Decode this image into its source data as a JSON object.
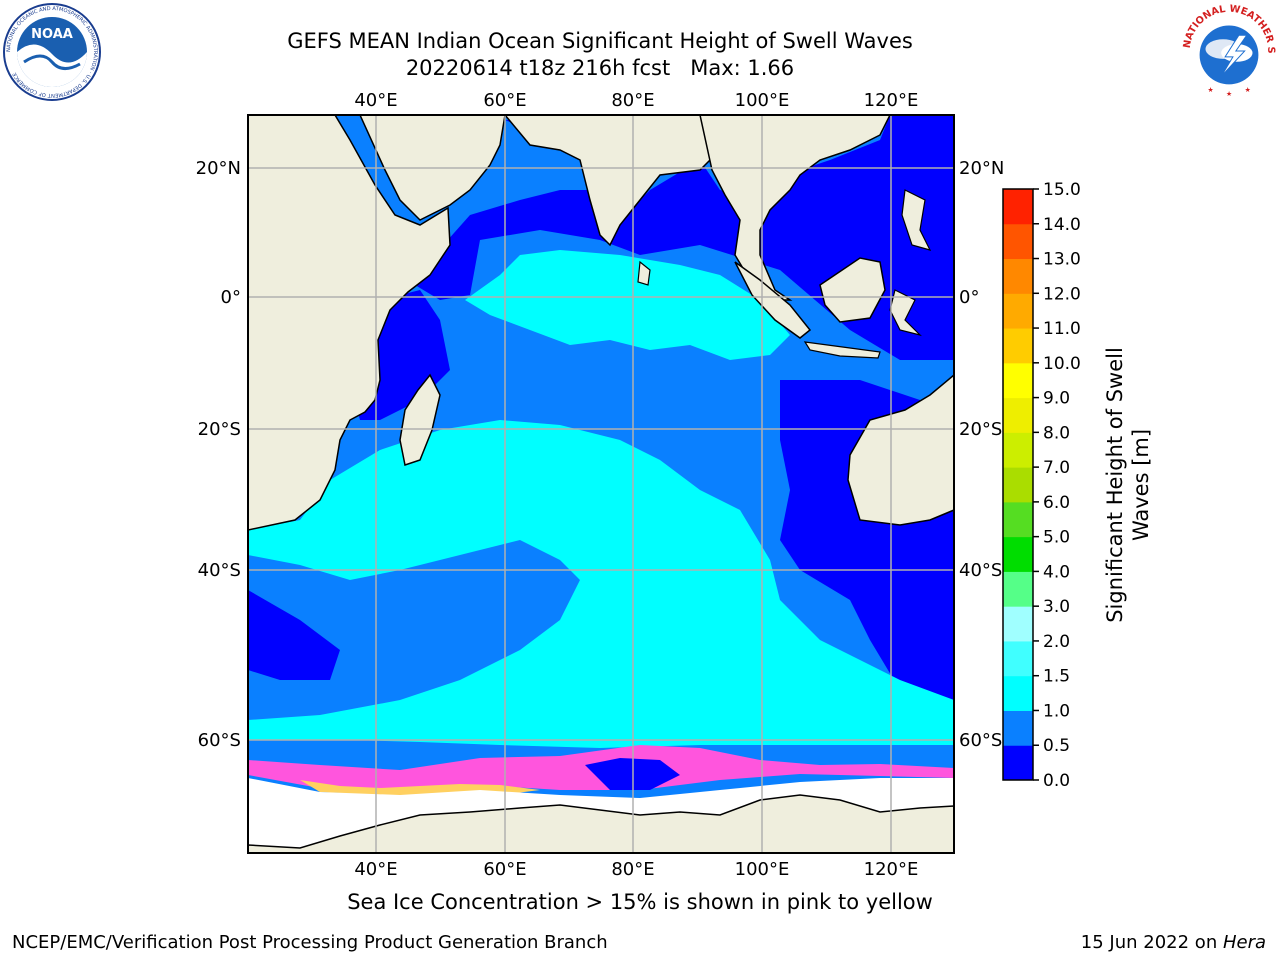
{
  "title": {
    "line1": "GEFS MEAN Indian Ocean Significant Height of Swell Waves",
    "line2": "20220614 t18z 216h fcst   Max: 1.66"
  },
  "map": {
    "lon_ticks": [
      "40°E",
      "60°E",
      "80°E",
      "100°E",
      "120°E"
    ],
    "lat_ticks_left": [
      "20°N",
      "0°",
      "20°S",
      "40°S",
      "60°S"
    ],
    "lat_ticks_right": [
      "20°N",
      "0°",
      "20°S",
      "40°S",
      "60°S"
    ],
    "lon_range": [
      20,
      130
    ],
    "lat_range": [
      -71,
      28
    ],
    "grid": true,
    "colors": {
      "land": "#efeedd",
      "ice_low": "#ff55dd",
      "ice_high": "#ffd060"
    }
  },
  "colorbar": {
    "label_line1": "Significant Height of Swell",
    "label_line2": "Waves [m]",
    "ticks": [
      "0.0",
      "0.5",
      "1.0",
      "1.5",
      "2.0",
      "3.0",
      "4.0",
      "5.0",
      "6.0",
      "7.0",
      "8.0",
      "9.0",
      "10.0",
      "11.0",
      "12.0",
      "13.0",
      "14.0",
      "15.0"
    ],
    "colors": [
      "#0000ff",
      "#0a80ff",
      "#00ffff",
      "#40ffff",
      "#a0ffff",
      "#55ff88",
      "#00dd00",
      "#55dd22",
      "#aadd00",
      "#ccee00",
      "#eeee00",
      "#ffff00",
      "#ffcc00",
      "#ffaa00",
      "#ff8800",
      "#ff5500",
      "#ff2200"
    ]
  },
  "caption": "Sea Ice Concentration > 15% is shown in pink to yellow",
  "footer": {
    "left": "NCEP/EMC/Verification Post Processing Product Generation Branch",
    "right_date": "15 Jun 2022 on ",
    "right_host": "Hera"
  },
  "logos": {
    "noaa_text": "NOAA",
    "noaa_ring": "NATIONAL OCEANIC AND ATMOSPHERIC ADMINISTRATION · U.S. DEPARTMENT OF COMMERCE",
    "nws_ring": "NATIONAL WEATHER SERVICE"
  }
}
